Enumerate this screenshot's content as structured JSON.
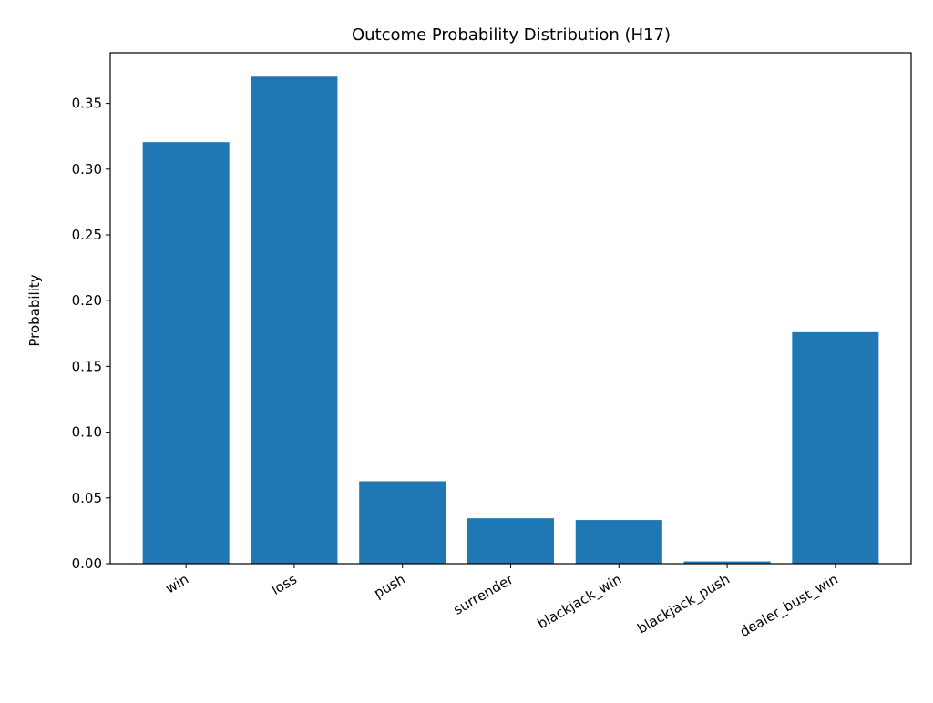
{
  "chart_data": {
    "type": "bar",
    "title": "Outcome Probability Distribution (H17)",
    "xlabel": "",
    "ylabel": "Probability",
    "categories": [
      "win",
      "loss",
      "push",
      "surrender",
      "blackjack_win",
      "blackjack_push",
      "dealer_bust_win"
    ],
    "values": [
      0.3205,
      0.3703,
      0.0627,
      0.0345,
      0.0332,
      0.0017,
      0.176
    ],
    "ylim": [
      0,
      0.3885
    ],
    "yticks": [
      0.0,
      0.05,
      0.1,
      0.15,
      0.2,
      0.25,
      0.3,
      0.35
    ],
    "ytick_labels": [
      "0.00",
      "0.05",
      "0.10",
      "0.15",
      "0.20",
      "0.25",
      "0.30",
      "0.35"
    ],
    "x_tick_rotation": 30,
    "grid": false,
    "legend": "none",
    "bar_color": "#1f77b4"
  }
}
